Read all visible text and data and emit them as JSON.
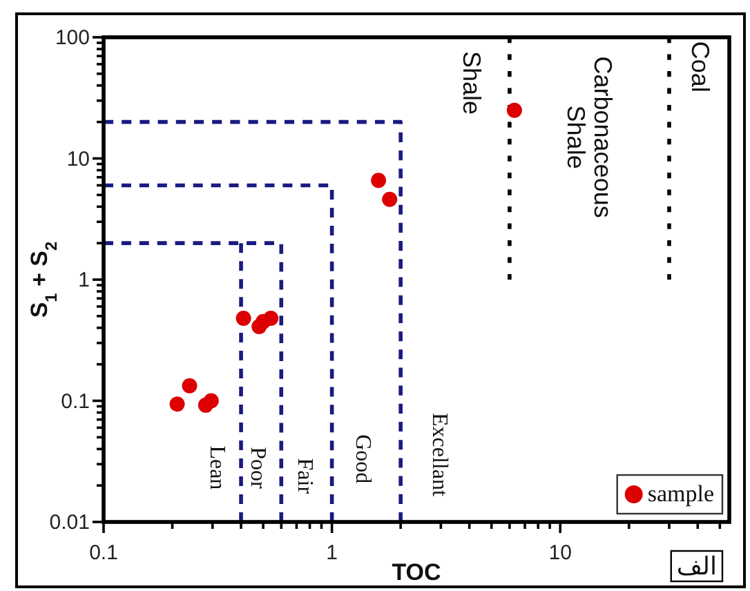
{
  "chart_data": {
    "type": "scatter",
    "xlabel": "TOC",
    "ylabel": "S$_{1}$ + S$_{2}$",
    "log": "xy",
    "grid": false,
    "legend": "bottom right",
    "xlim": [
      0.1,
      55
    ],
    "ylim": [
      0.01,
      100
    ],
    "xticks": [
      0.1,
      {
        "value": 0.2,
        "label": null
      },
      {
        "value": 0.3,
        "label": null
      },
      {
        "value": 0.4,
        "label": null
      },
      {
        "value": 0.5,
        "label": null
      },
      {
        "value": 0.6,
        "label": null
      },
      {
        "value": 0.7,
        "label": null
      },
      {
        "value": 0.8,
        "label": null
      },
      {
        "value": 0.9,
        "label": null
      },
      1,
      {
        "value": 2,
        "label": null
      },
      {
        "value": 3,
        "label": null
      },
      {
        "value": 4,
        "label": null
      },
      {
        "value": 5,
        "label": null
      },
      {
        "value": 6,
        "label": null
      },
      {
        "value": 7,
        "label": null
      },
      {
        "value": 8,
        "label": null
      },
      {
        "value": 9,
        "label": null
      },
      10,
      {
        "value": 20,
        "label": null
      },
      {
        "value": 30,
        "label": null
      },
      {
        "value": 40,
        "label": null
      },
      {
        "value": 50,
        "label": null
      }
    ],
    "yticks": [
      0.01,
      {
        "value": 0.02,
        "label": null
      },
      {
        "value": 0.03,
        "label": null
      },
      {
        "value": 0.04,
        "label": null
      },
      {
        "value": 0.05,
        "label": null
      },
      {
        "value": 0.06,
        "label": null
      },
      {
        "value": 0.07,
        "label": null
      },
      {
        "value": 0.08,
        "label": null
      },
      {
        "value": 0.09,
        "label": null
      },
      0.1,
      {
        "value": 0.2,
        "label": null
      },
      {
        "value": 0.3,
        "label": null
      },
      {
        "value": 0.4,
        "label": null
      },
      {
        "value": 0.5,
        "label": null
      },
      {
        "value": 0.6,
        "label": null
      },
      {
        "value": 0.7,
        "label": null
      },
      {
        "value": 0.8,
        "label": null
      },
      {
        "value": 0.9,
        "label": null
      },
      1,
      {
        "value": 2,
        "label": null
      },
      {
        "value": 3,
        "label": null
      },
      {
        "value": 4,
        "label": null
      },
      {
        "value": 5,
        "label": null
      },
      {
        "value": 6,
        "label": null
      },
      {
        "value": 7,
        "label": null
      },
      {
        "value": 8,
        "label": null
      },
      {
        "value": 9,
        "label": null
      },
      10,
      {
        "value": 20,
        "label": null
      },
      {
        "value": 30,
        "label": null
      },
      {
        "value": 40,
        "label": null
      },
      {
        "value": 50,
        "label": null
      },
      {
        "value": 60,
        "label": null
      },
      {
        "value": 70,
        "label": null
      },
      {
        "value": 80,
        "label": null
      },
      {
        "value": 90,
        "label": null
      },
      100
    ],
    "series": [
      {
        "type": "line",
        "color": "#1a1a80",
        "line_style": "dashed",
        "x": [
          0.1,
          2,
          2
        ],
        "values": [
          20,
          20,
          0.01
        ]
      },
      {
        "type": "line",
        "color": "#1a1a80",
        "line_style": "dashed",
        "x": [
          0.1,
          1,
          1
        ],
        "values": [
          6,
          6,
          0.01
        ]
      },
      {
        "type": "line",
        "color": "#1a1a80",
        "line_style": "dashed",
        "x": [
          0.1,
          0.6,
          0.6
        ],
        "values": [
          2,
          2,
          0.01
        ]
      },
      {
        "type": "line",
        "color": "#1a1a80",
        "line_style": "dashed",
        "x": [
          0.4,
          0.4
        ],
        "values": [
          2,
          0.01
        ]
      },
      {
        "type": "line",
        "color": "#000000",
        "line_style": "dotted",
        "x": [
          6,
          6
        ],
        "values": [
          100,
          1
        ]
      },
      {
        "type": "line",
        "color": "#000000",
        "line_style": "dotted",
        "x": [
          30,
          30
        ],
        "values": [
          100,
          1
        ]
      },
      {
        "name": "sample",
        "marker": "circle",
        "color": "#dd0000",
        "x": [
          6.3,
          1.6,
          1.79,
          0.41,
          0.48,
          0.5,
          0.54,
          0.21,
          0.238,
          0.28,
          0.296
        ],
        "values": [
          25,
          6.6,
          4.6,
          0.48,
          0.41,
          0.45,
          0.48,
          0.094,
          0.133,
          0.092,
          0.1
        ]
      }
    ],
    "annotations": [
      "Lean",
      "Poor",
      "Fair",
      "Good",
      "Excellant",
      "Shale",
      "Carbonaceous\nShale",
      "Coal",
      "الف"
    ]
  }
}
